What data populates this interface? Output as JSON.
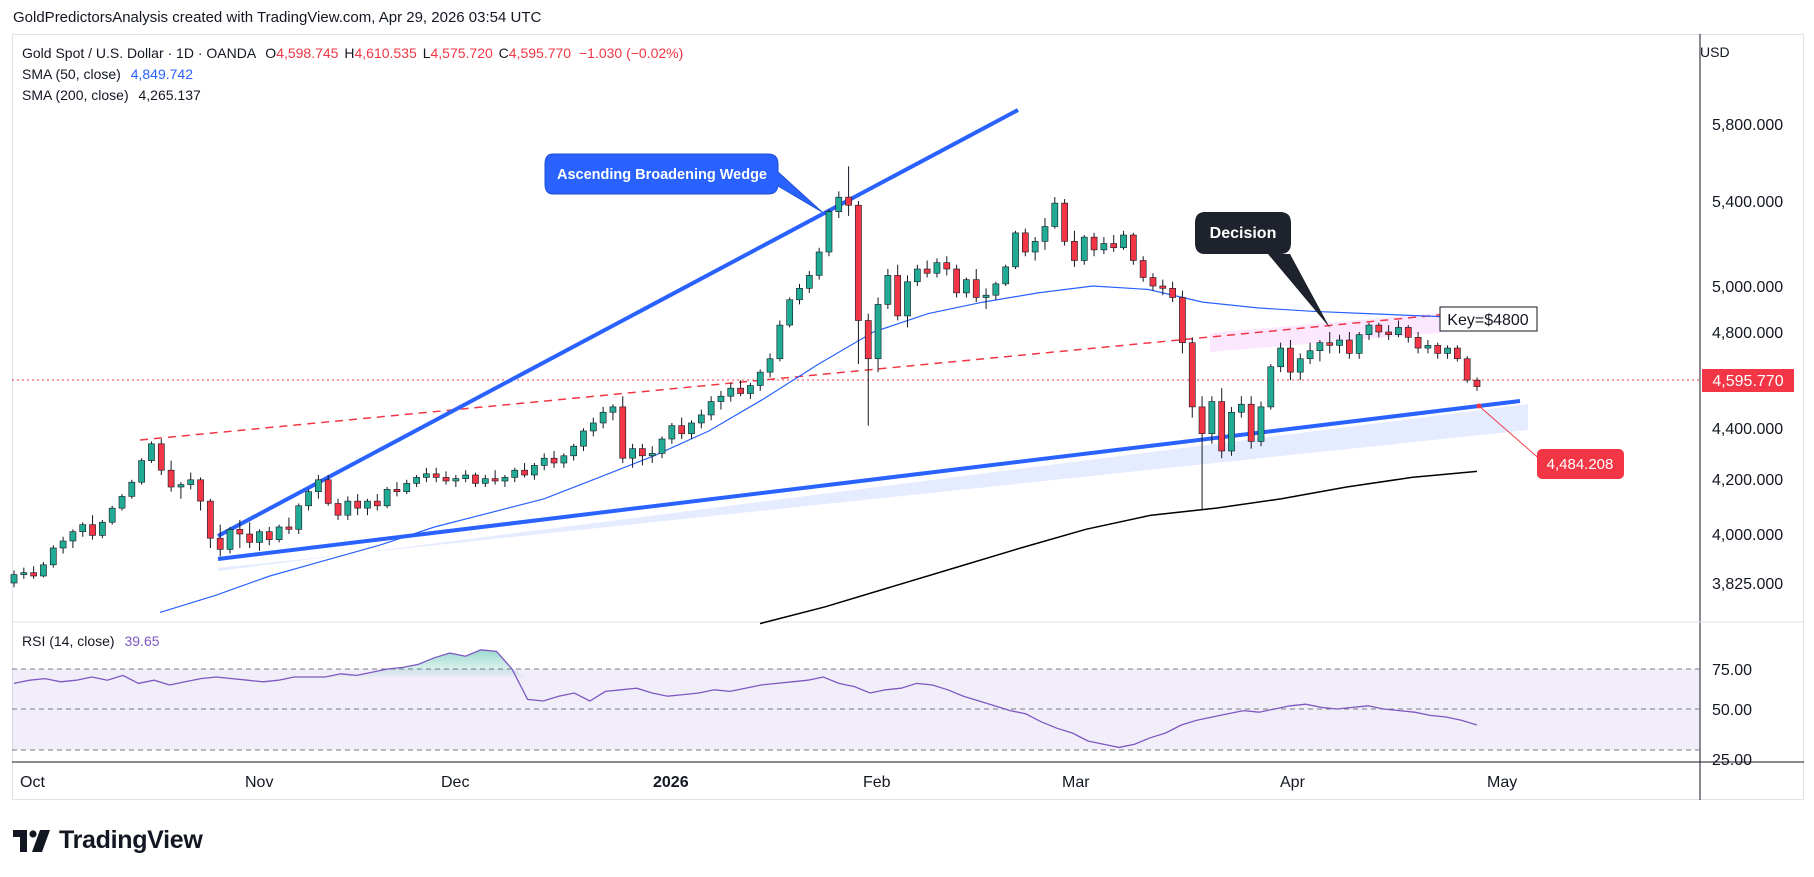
{
  "header": {
    "attribution": "GoldPredictorsAnalysis created with TradingView.com, Apr 29, 2026 03:54 UTC"
  },
  "legend": {
    "symbol": "Gold Spot / U.S. Dollar · 1D · OANDA",
    "open": "O4,598.745",
    "high": "H4,610.535",
    "low": "L4,575.720",
    "close": "C4,595.770",
    "change": "−1.030 (−0.02%)",
    "sma50_label": "SMA (50, close)",
    "sma50_value": "4,849.742",
    "sma200_label": "SMA (200, close)",
    "sma200_value": "4,265.137",
    "rsi_label": "RSI (14, close)",
    "rsi_value": "39.65"
  },
  "currency": "USD",
  "branding": {
    "logo_text": "TradingView"
  },
  "chart_data": {
    "type": "candlestick",
    "symbol": "XAUUSD",
    "timeframe": "1D",
    "price_axis_ticks": [
      "5,800.000",
      "5,400.000",
      "5,000.000",
      "4,800.000",
      "4,400.000",
      "4,200.000",
      "4,000.000",
      "3,825.000"
    ],
    "rsi_axis_ticks": [
      "75.00",
      "50.00",
      "25.00"
    ],
    "time_axis_ticks": [
      "Oct",
      "Nov",
      "Dec",
      "2026",
      "Feb",
      "Mar",
      "Apr",
      "May"
    ],
    "last_price": "4,595.770",
    "target_price": "4,484.208",
    "annotations": {
      "wedge": "Ascending Broadening Wedge",
      "decision": "Decision",
      "key": "Key=$4800"
    },
    "colors": {
      "up": "#22ab94",
      "down": "#f23645",
      "trendline": "#2962ff",
      "sma50": "#2962ff",
      "sma200": "#000000",
      "rsi": "#7e57c2"
    },
    "candles_ohlc_approx": [
      [
        3825,
        3870,
        3810,
        3855
      ],
      [
        3855,
        3880,
        3840,
        3862
      ],
      [
        3862,
        3885,
        3840,
        3850
      ],
      [
        3850,
        3900,
        3845,
        3890
      ],
      [
        3890,
        3960,
        3880,
        3950
      ],
      [
        3950,
        3990,
        3930,
        3975
      ],
      [
        3975,
        4020,
        3950,
        4010
      ],
      [
        4010,
        4050,
        3990,
        4040
      ],
      [
        4040,
        4080,
        3980,
        3995
      ],
      [
        3995,
        4060,
        3985,
        4050
      ],
      [
        4050,
        4120,
        4040,
        4110
      ],
      [
        4110,
        4170,
        4100,
        4160
      ],
      [
        4160,
        4230,
        4150,
        4220
      ],
      [
        4220,
        4320,
        4210,
        4310
      ],
      [
        4310,
        4390,
        4300,
        4380
      ],
      [
        4380,
        4400,
        4250,
        4270
      ],
      [
        4270,
        4310,
        4180,
        4200
      ],
      [
        4200,
        4220,
        4150,
        4210
      ],
      [
        4210,
        4260,
        4190,
        4230
      ],
      [
        4230,
        4240,
        4100,
        4140
      ],
      [
        4140,
        4150,
        3950,
        3985
      ],
      [
        3985,
        4040,
        3920,
        3945
      ],
      [
        3945,
        4030,
        3930,
        4020
      ],
      [
        4020,
        4060,
        3950,
        4000
      ],
      [
        4000,
        4050,
        3950,
        3970
      ],
      [
        3970,
        4020,
        3940,
        4010
      ],
      [
        4010,
        4030,
        3960,
        3980
      ],
      [
        3980,
        4040,
        3970,
        4030
      ],
      [
        4030,
        4070,
        4000,
        4020
      ],
      [
        4020,
        4130,
        4000,
        4120
      ],
      [
        4120,
        4190,
        4100,
        4180
      ],
      [
        4180,
        4250,
        4150,
        4230
      ],
      [
        4230,
        4250,
        4120,
        4130
      ],
      [
        4130,
        4150,
        4060,
        4080
      ],
      [
        4080,
        4160,
        4060,
        4140
      ],
      [
        4140,
        4170,
        4080,
        4110
      ],
      [
        4110,
        4150,
        4080,
        4140
      ],
      [
        4140,
        4170,
        4100,
        4120
      ],
      [
        4120,
        4200,
        4110,
        4190
      ],
      [
        4190,
        4220,
        4160,
        4180
      ],
      [
        4180,
        4230,
        4170,
        4215
      ],
      [
        4215,
        4250,
        4200,
        4240
      ],
      [
        4240,
        4280,
        4220,
        4255
      ],
      [
        4255,
        4280,
        4220,
        4240
      ],
      [
        4240,
        4265,
        4210,
        4225
      ],
      [
        4225,
        4250,
        4200,
        4235
      ],
      [
        4235,
        4270,
        4220,
        4250
      ],
      [
        4250,
        4260,
        4200,
        4215
      ],
      [
        4215,
        4250,
        4200,
        4235
      ],
      [
        4235,
        4270,
        4210,
        4225
      ],
      [
        4225,
        4250,
        4200,
        4240
      ],
      [
        4240,
        4280,
        4220,
        4270
      ],
      [
        4270,
        4300,
        4240,
        4250
      ],
      [
        4250,
        4300,
        4230,
        4290
      ],
      [
        4290,
        4340,
        4270,
        4320
      ],
      [
        4320,
        4350,
        4280,
        4300
      ],
      [
        4300,
        4340,
        4280,
        4330
      ],
      [
        4330,
        4380,
        4310,
        4370
      ],
      [
        4370,
        4440,
        4350,
        4430
      ],
      [
        4430,
        4480,
        4410,
        4460
      ],
      [
        4460,
        4520,
        4440,
        4500
      ],
      [
        4500,
        4530,
        4470,
        4520
      ],
      [
        4520,
        4560,
        4300,
        4320
      ],
      [
        4320,
        4380,
        4280,
        4360
      ],
      [
        4360,
        4380,
        4290,
        4330
      ],
      [
        4330,
        4370,
        4300,
        4340
      ],
      [
        4340,
        4410,
        4320,
        4400
      ],
      [
        4400,
        4460,
        4380,
        4450
      ],
      [
        4450,
        4480,
        4400,
        4420
      ],
      [
        4420,
        4470,
        4400,
        4460
      ],
      [
        4460,
        4510,
        4440,
        4490
      ],
      [
        4490,
        4560,
        4470,
        4540
      ],
      [
        4540,
        4580,
        4510,
        4560
      ],
      [
        4560,
        4610,
        4540,
        4590
      ],
      [
        4590,
        4620,
        4560,
        4570
      ],
      [
        4570,
        4610,
        4550,
        4600
      ],
      [
        4600,
        4660,
        4580,
        4650
      ],
      [
        4650,
        4720,
        4630,
        4700
      ],
      [
        4700,
        4850,
        4690,
        4830
      ],
      [
        4830,
        4950,
        4820,
        4940
      ],
      [
        4940,
        5010,
        4920,
        4990
      ],
      [
        4990,
        5070,
        4970,
        5050
      ],
      [
        5050,
        5180,
        5030,
        5160
      ],
      [
        5160,
        5360,
        5140,
        5350
      ],
      [
        5350,
        5450,
        5320,
        5420
      ],
      [
        5420,
        5580,
        5330,
        5380
      ],
      [
        5380,
        5400,
        4680,
        4850
      ],
      [
        4850,
        4880,
        4450,
        4700
      ],
      [
        4700,
        4950,
        4650,
        4920
      ],
      [
        4920,
        5080,
        4900,
        5050
      ],
      [
        5050,
        5100,
        4850,
        4870
      ],
      [
        4870,
        5050,
        4820,
        5020
      ],
      [
        5020,
        5100,
        5000,
        5080
      ],
      [
        5080,
        5120,
        5040,
        5060
      ],
      [
        5060,
        5130,
        5040,
        5110
      ],
      [
        5110,
        5140,
        5050,
        5080
      ],
      [
        5080,
        5100,
        4950,
        4970
      ],
      [
        4970,
        5040,
        4950,
        5030
      ],
      [
        5030,
        5080,
        4930,
        4950
      ],
      [
        4950,
        4990,
        4900,
        4960
      ],
      [
        4960,
        5020,
        4940,
        5010
      ],
      [
        5010,
        5100,
        5000,
        5090
      ],
      [
        5090,
        5260,
        5080,
        5250
      ],
      [
        5250,
        5270,
        5140,
        5160
      ],
      [
        5160,
        5230,
        5120,
        5210
      ],
      [
        5210,
        5320,
        5170,
        5280
      ],
      [
        5280,
        5420,
        5270,
        5390
      ],
      [
        5390,
        5410,
        5190,
        5210
      ],
      [
        5210,
        5260,
        5090,
        5120
      ],
      [
        5120,
        5240,
        5100,
        5230
      ],
      [
        5230,
        5250,
        5140,
        5170
      ],
      [
        5170,
        5230,
        5150,
        5200
      ],
      [
        5200,
        5240,
        5160,
        5180
      ],
      [
        5180,
        5260,
        5170,
        5240
      ],
      [
        5240,
        5250,
        5100,
        5120
      ],
      [
        5120,
        5140,
        5020,
        5040
      ],
      [
        5040,
        5060,
        4980,
        5000
      ],
      [
        5000,
        5030,
        4960,
        4990
      ],
      [
        4990,
        5020,
        4930,
        4950
      ],
      [
        4950,
        4980,
        4720,
        4760
      ],
      [
        4760,
        4780,
        4480,
        4520
      ],
      [
        4520,
        4560,
        4100,
        4420
      ],
      [
        4420,
        4560,
        4380,
        4540
      ],
      [
        4540,
        4590,
        4320,
        4350
      ],
      [
        4350,
        4520,
        4330,
        4500
      ],
      [
        4500,
        4560,
        4480,
        4530
      ],
      [
        4530,
        4560,
        4360,
        4390
      ],
      [
        4390,
        4540,
        4370,
        4520
      ],
      [
        4520,
        4680,
        4510,
        4670
      ],
      [
        4670,
        4760,
        4650,
        4740
      ],
      [
        4740,
        4770,
        4620,
        4650
      ],
      [
        4650,
        4720,
        4620,
        4700
      ],
      [
        4700,
        4760,
        4680,
        4730
      ],
      [
        4730,
        4770,
        4690,
        4760
      ],
      [
        4760,
        4800,
        4720,
        4750
      ],
      [
        4750,
        4790,
        4720,
        4770
      ],
      [
        4770,
        4800,
        4700,
        4720
      ],
      [
        4720,
        4800,
        4700,
        4790
      ],
      [
        4790,
        4840,
        4770,
        4830
      ],
      [
        4830,
        4840,
        4780,
        4800
      ],
      [
        4800,
        4830,
        4770,
        4790
      ],
      [
        4790,
        4850,
        4780,
        4820
      ],
      [
        4820,
        4830,
        4760,
        4780
      ],
      [
        4780,
        4800,
        4720,
        4740
      ],
      [
        4740,
        4770,
        4720,
        4750
      ],
      [
        4750,
        4760,
        4700,
        4720
      ],
      [
        4720,
        4750,
        4700,
        4740
      ],
      [
        4740,
        4750,
        4690,
        4700
      ],
      [
        4700,
        4710,
        4610,
        4620
      ],
      [
        4620,
        4630,
        4580,
        4596
      ]
    ],
    "sma50_approx_price": [
      3720,
      3780,
      3850,
      3905,
      3960,
      4030,
      4090,
      4150,
      4240,
      4330,
      4430,
      4550,
      4680,
      4800,
      4880,
      4930,
      4970,
      5000,
      4985,
      4930,
      4905,
      4890,
      4880,
      4870,
      4860
    ],
    "sma200_approx_price": [
      3680,
      3740,
      3810,
      3880,
      3950,
      4020,
      4080,
      4110,
      4150,
      4200,
      4240,
      4265
    ],
    "rsi_approx": [
      66,
      68,
      69,
      67,
      68,
      70,
      68,
      71,
      66,
      68,
      65,
      67,
      69,
      70,
      69,
      68,
      67,
      68,
      70,
      70,
      70,
      72,
      71,
      73,
      75,
      76,
      78,
      82,
      85,
      83,
      87,
      86,
      75,
      56,
      55,
      58,
      60,
      55,
      61,
      62,
      63,
      60,
      58,
      59,
      60,
      62,
      61,
      63,
      65,
      66,
      67,
      68,
      70,
      66,
      64,
      60,
      62,
      63,
      66,
      65,
      62,
      58,
      55,
      52,
      49,
      47,
      42,
      38,
      35,
      30,
      28,
      26,
      28,
      32,
      35,
      40,
      43,
      45,
      47,
      49,
      48,
      50,
      52,
      53,
      51,
      50,
      51,
      52,
      50,
      49,
      48,
      46,
      45,
      43,
      40
    ]
  }
}
